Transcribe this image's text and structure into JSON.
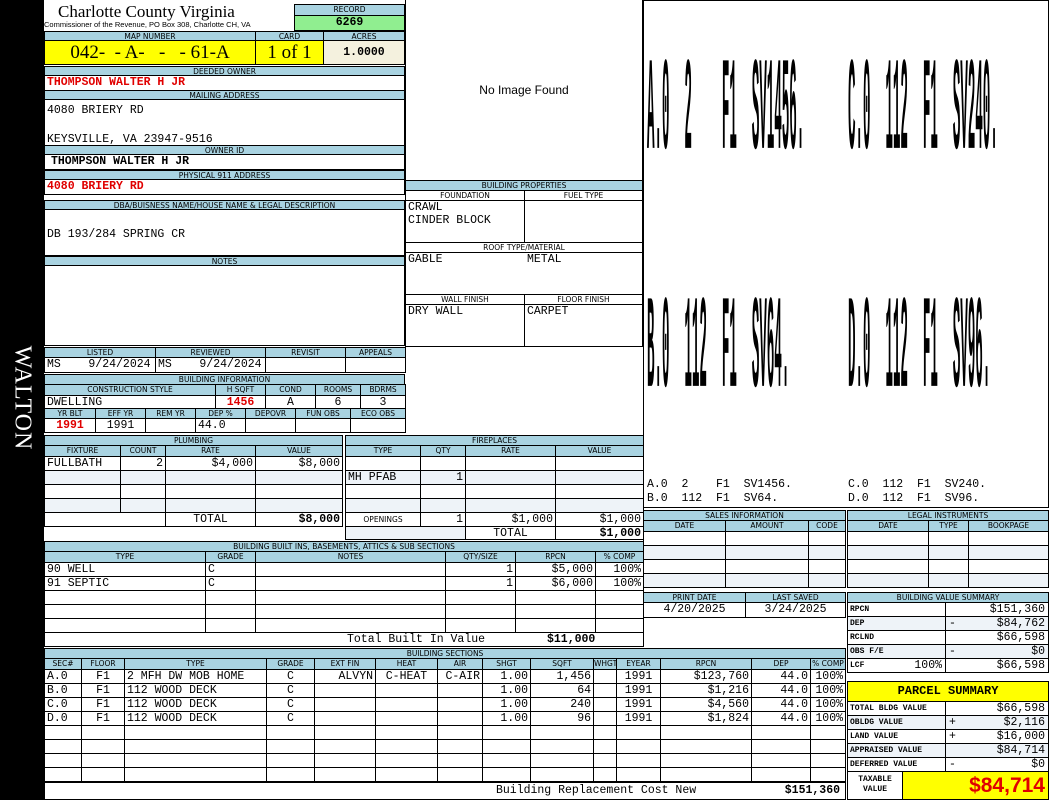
{
  "header": {
    "county": "Charlotte County Virginia",
    "subtitle": "Commissioner of the Revenue, PO Box 308, Charlotte CH, VA",
    "record_label": "RECORD",
    "record": "6269"
  },
  "district": "WALTON",
  "parcel": {
    "map_label": "MAP NUMBER",
    "map": "042-  - A-   -   - 61-A",
    "card_label": "CARD",
    "card": "1 of 1",
    "acres_label": "ACRES",
    "acres": "1.0000"
  },
  "owner": {
    "deeded_label": "DEEDED OWNER",
    "deeded": "THOMPSON WALTER H JR",
    "mailing_label": "MAILING ADDRESS",
    "mailing_line1": "4080 BRIERY RD",
    "mailing_line2": "KEYSVILLE, VA 23947-9516",
    "owner_id_label": "OWNER ID",
    "owner_id": "THOMPSON WALTER H JR",
    "physical_label": "PHYSICAL 911 ADDRESS",
    "physical": "4080 BRIERY RD",
    "dba_label": "DBA/BUISNESS NAME/HOUSE NAME & LEGAL DESCRIPTION",
    "dba": "DB 193/284 SPRING CR",
    "notes_label": "NOTES",
    "notes": ""
  },
  "review": {
    "labels": [
      "LISTED",
      "REVIEWED",
      "REVISIT",
      "APPEALS"
    ],
    "values": [
      "MS    9/24/2024",
      "MS    9/24/2024",
      "",
      ""
    ]
  },
  "building_info": {
    "title": "BUILDING INFORMATION",
    "row1_labels": [
      "CONSTRUCTION STYLE",
      "H SQFT",
      "COND",
      "ROOMS",
      "BDRMS"
    ],
    "row1_values": [
      "DWELLING",
      "1456",
      "A",
      "6",
      "3"
    ],
    "row2_labels": [
      "YR BLT",
      "EFF YR",
      "REM YR",
      "DEP %",
      "DEPOVR",
      "FUN OBS",
      "ECO OBS"
    ],
    "row2_values": [
      "1991",
      "1991",
      "",
      "44.0",
      "",
      "",
      ""
    ]
  },
  "plumbing": {
    "title": "PLUMBING",
    "columns": [
      "FIXTURE",
      "COUNT",
      "RATE",
      "VALUE"
    ],
    "rows": [
      [
        "FULLBATH",
        "2",
        "$4,000",
        "$8,000"
      ],
      [
        "",
        "",
        "",
        ""
      ],
      [
        "",
        "",
        "",
        ""
      ],
      [
        "",
        "",
        "",
        ""
      ]
    ],
    "total_label": "TOTAL",
    "total": "$8,000"
  },
  "fireplaces": {
    "title": "FIREPLACES",
    "columns": [
      "TYPE",
      "QTY",
      "RATE",
      "VALUE"
    ],
    "rows": [
      [
        "",
        "",
        "",
        ""
      ],
      [
        "MH PFAB",
        "1",
        "",
        ""
      ],
      [
        "",
        "",
        "",
        ""
      ],
      [
        "",
        "",
        "",
        ""
      ]
    ],
    "openings_label": "OPENINGS",
    "openings_qty": "1",
    "openings_rate": "$1,000",
    "openings_value": "$1,000",
    "total_label": "TOTAL",
    "total": "$1,000"
  },
  "built_ins": {
    "title": "BUILDING BUILT INS, BASEMENTS, ATTICS & SUB SECTIONS",
    "columns": [
      "TYPE",
      "GRADE",
      "NOTES",
      "QTY/SIZE",
      "RPCN",
      "% COMP"
    ],
    "rows": [
      [
        "90 WELL",
        "C",
        "",
        "1",
        "$5,000",
        "100%"
      ],
      [
        "91 SEPTIC",
        "C",
        "",
        "1",
        "$6,000",
        "100%"
      ],
      [
        "",
        "",
        "",
        "",
        "",
        ""
      ],
      [
        "",
        "",
        "",
        "",
        "",
        ""
      ],
      [
        "",
        "",
        "",
        "",
        "",
        ""
      ]
    ],
    "total_label": "Total Built In Value",
    "total": "$11,000"
  },
  "building_sections": {
    "title": "BUILDING SECTIONS",
    "columns": [
      "SEC#",
      "FLOOR",
      "TYPE",
      "GRADE",
      "EXT FIN",
      "HEAT",
      "AIR",
      "SHGT",
      "SQFT",
      "WHGT",
      "EYEAR",
      "RPCN",
      "DEP",
      "% COMP"
    ],
    "rows": [
      [
        "A.0",
        "F1",
        "2 MFH DW MOB HOME",
        "C",
        "ALVYN",
        "C-HEAT",
        "C-AIR",
        "1.00",
        "1,456",
        "",
        "1991",
        "$123,760",
        "44.0",
        "100%"
      ],
      [
        "B.0",
        "F1",
        "112 WOOD DECK",
        "C",
        "",
        "",
        "",
        "1.00",
        "64",
        "",
        "1991",
        "$1,216",
        "44.0",
        "100%"
      ],
      [
        "C.0",
        "F1",
        "112 WOOD DECK",
        "C",
        "",
        "",
        "",
        "1.00",
        "240",
        "",
        "1991",
        "$4,560",
        "44.0",
        "100%"
      ],
      [
        "D.0",
        "F1",
        "112 WOOD DECK",
        "C",
        "",
        "",
        "",
        "1.00",
        "96",
        "",
        "1991",
        "$1,824",
        "44.0",
        "100%"
      ],
      [
        "",
        "",
        "",
        "",
        "",
        "",
        "",
        "",
        "",
        "",
        "",
        "",
        "",
        ""
      ],
      [
        "",
        "",
        "",
        "",
        "",
        "",
        "",
        "",
        "",
        "",
        "",
        "",
        "",
        ""
      ],
      [
        "",
        "",
        "",
        "",
        "",
        "",
        "",
        "",
        "",
        "",
        "",
        "",
        "",
        ""
      ],
      [
        "",
        "",
        "",
        "",
        "",
        "",
        "",
        "",
        "",
        "",
        "",
        "",
        "",
        ""
      ]
    ],
    "replacement_label": "Building Replacement Cost New",
    "replacement": "$151,360"
  },
  "image": {
    "placeholder": "No Image Found"
  },
  "building_properties": {
    "title": "BUILDING PROPERTIES",
    "foundation_label": "FOUNDATION",
    "foundation": "CRAWL\nCINDER BLOCK",
    "fuel_label": "FUEL TYPE",
    "fuel": "",
    "roof_label": "ROOF TYPE/MATERIAL",
    "roof_type": "GABLE",
    "roof_material": "METAL",
    "wall_label": "WALL FINISH",
    "wall": "DRY WALL",
    "floor_label": "FLOOR FINISH",
    "floor": "CARPET"
  },
  "sketch": {
    "labels": [
      "A.0  2    F1  SV1456.",
      "C.0  112  F1  SV240.",
      "B.0  112  F1  SV64.",
      "D.0  112  F1  SV96."
    ]
  },
  "sales": {
    "title": "SALES INFORMATION",
    "columns": [
      "DATE",
      "AMOUNT",
      "CODE"
    ],
    "rows": [
      [
        "",
        "",
        ""
      ],
      [
        "",
        "",
        ""
      ],
      [
        "",
        "",
        ""
      ],
      [
        "",
        "",
        ""
      ]
    ]
  },
  "legal": {
    "title": "LEGAL INSTRUMENTS",
    "columns": [
      "DATE",
      "TYPE",
      "BOOKPAGE"
    ],
    "rows": [
      [
        "",
        "",
        ""
      ],
      [
        "",
        "",
        ""
      ],
      [
        "",
        "",
        ""
      ],
      [
        "",
        "",
        ""
      ]
    ]
  },
  "dates": {
    "print_label": "PRINT DATE",
    "print": "4/20/2025",
    "saved_label": "LAST SAVED",
    "saved": "3/24/2025"
  },
  "value_summary": {
    "title": "BUILDING VALUE SUMMARY",
    "rows": [
      {
        "label": "RPCN",
        "sign": "",
        "value": "$151,360"
      },
      {
        "label": "DEP",
        "sign": "-",
        "value": "$84,762"
      },
      {
        "label": "RCLND",
        "sign": "",
        "value": "$66,598"
      },
      {
        "label": "OBS F/E",
        "sign": "-",
        "value": "$0"
      },
      {
        "label": "LCF",
        "pct": "100%",
        "sign": "",
        "value": "$66,598"
      }
    ]
  },
  "parcel_summary": {
    "title": "PARCEL SUMMARY",
    "rows": [
      {
        "label": "TOTAL BLDG VALUE",
        "sign": "",
        "value": "$66,598"
      },
      {
        "label": "OBLDG VALUE",
        "sign": "+",
        "value": "$2,116"
      },
      {
        "label": "LAND VALUE",
        "sign": "+",
        "value": "$16,000"
      },
      {
        "label": "APPRAISED VALUE",
        "sign": "",
        "value": "$84,714"
      },
      {
        "label": "DEFERRED VALUE",
        "sign": "-",
        "value": "$0"
      }
    ],
    "taxable_label": "TAXABLE\nVALUE",
    "taxable": "$84,714"
  },
  "colors": {
    "header": "#a9d3e1",
    "highlight": "#ffff00",
    "record": "#90ee90",
    "alert": "#e00000"
  }
}
